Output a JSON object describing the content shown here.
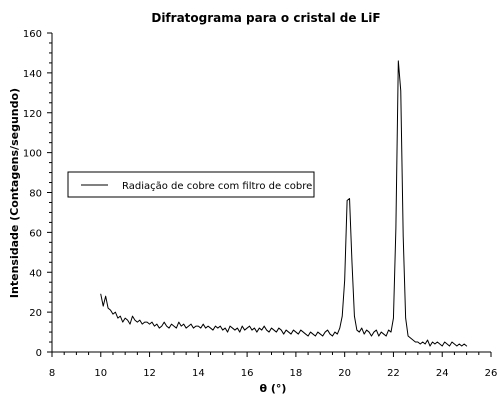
{
  "chart_data": {
    "type": "line",
    "title": "Difratograma para o cristal de LiF",
    "xlabel": "θ (°)",
    "ylabel": "Intensidade (Contagens/segundo)",
    "xlim": [
      8,
      26
    ],
    "ylim": [
      0,
      160
    ],
    "x_ticks": [
      8,
      10,
      12,
      14,
      16,
      18,
      20,
      22,
      24,
      26
    ],
    "y_ticks": [
      0,
      20,
      40,
      60,
      80,
      100,
      120,
      140,
      160
    ],
    "x_tick_labels": [
      "8",
      "10",
      "12",
      "14",
      "16",
      "18",
      "20",
      "22",
      "24",
      "26"
    ],
    "y_tick_labels": [
      "0",
      "20",
      "40",
      "60",
      "80",
      "100",
      "120",
      "140",
      "160"
    ],
    "grid": false,
    "legend": {
      "placement": "left-middle",
      "entries": [
        "Radiação de cobre com filtro de cobre"
      ]
    },
    "line_color": "#000000",
    "series": [
      {
        "name": "Radiação de cobre com filtro de cobre",
        "x": [
          10.0,
          10.1,
          10.2,
          10.3,
          10.4,
          10.5,
          10.6,
          10.7,
          10.8,
          10.9,
          11.0,
          11.1,
          11.2,
          11.3,
          11.4,
          11.5,
          11.6,
          11.7,
          11.8,
          11.9,
          12.0,
          12.1,
          12.2,
          12.3,
          12.4,
          12.5,
          12.6,
          12.7,
          12.8,
          12.9,
          13.0,
          13.1,
          13.2,
          13.3,
          13.4,
          13.5,
          13.6,
          13.7,
          13.8,
          13.9,
          14.0,
          14.1,
          14.2,
          14.3,
          14.4,
          14.5,
          14.6,
          14.7,
          14.8,
          14.9,
          15.0,
          15.1,
          15.2,
          15.3,
          15.4,
          15.5,
          15.6,
          15.7,
          15.8,
          15.9,
          16.0,
          16.1,
          16.2,
          16.3,
          16.4,
          16.5,
          16.6,
          16.7,
          16.8,
          16.9,
          17.0,
          17.1,
          17.2,
          17.3,
          17.4,
          17.5,
          17.6,
          17.7,
          17.8,
          17.9,
          18.0,
          18.1,
          18.2,
          18.3,
          18.4,
          18.5,
          18.6,
          18.7,
          18.8,
          18.9,
          19.0,
          19.1,
          19.2,
          19.3,
          19.4,
          19.5,
          19.6,
          19.7,
          19.8,
          19.9,
          20.0,
          20.1,
          20.2,
          20.3,
          20.4,
          20.5,
          20.6,
          20.7,
          20.8,
          20.9,
          21.0,
          21.1,
          21.2,
          21.3,
          21.4,
          21.5,
          21.6,
          21.7,
          21.8,
          21.9,
          22.0,
          22.1,
          22.2,
          22.3,
          22.4,
          22.5,
          22.6,
          22.7,
          22.8,
          22.9,
          23.0,
          23.1,
          23.2,
          23.3,
          23.4,
          23.5,
          23.6,
          23.7,
          23.8,
          23.9,
          24.0,
          24.1,
          24.2,
          24.3,
          24.4,
          24.5,
          24.6,
          24.7,
          24.8,
          24.9,
          25.0
        ],
        "values": [
          29,
          23,
          28,
          22,
          21,
          19,
          20,
          17,
          18,
          15,
          17,
          16,
          14,
          18,
          16,
          15,
          16,
          14,
          15,
          15,
          14,
          15,
          13,
          14,
          12,
          13,
          15,
          13,
          12,
          14,
          13,
          12,
          15,
          13,
          14,
          12,
          13,
          14,
          12,
          13,
          13,
          12,
          14,
          12,
          13,
          12,
          11,
          13,
          12,
          13,
          11,
          12,
          10,
          13,
          12,
          11,
          12,
          10,
          13,
          11,
          12,
          13,
          11,
          12,
          10,
          12,
          11,
          13,
          11,
          10,
          12,
          11,
          10,
          12,
          11,
          9,
          11,
          10,
          9,
          11,
          10,
          9,
          11,
          10,
          9,
          8,
          10,
          9,
          8,
          10,
          9,
          8,
          10,
          11,
          9,
          8,
          10,
          9,
          12,
          18,
          36,
          76,
          77,
          45,
          18,
          11,
          10,
          12,
          9,
          11,
          10,
          8,
          10,
          11,
          8,
          10,
          9,
          8,
          11,
          10,
          17,
          62,
          146,
          131,
          58,
          17,
          8,
          7,
          6,
          5,
          5,
          4,
          5,
          4,
          6,
          3,
          5,
          4,
          5,
          4,
          3,
          5,
          4,
          3,
          5,
          4,
          3,
          4,
          3,
          4,
          3
        ]
      }
    ]
  }
}
